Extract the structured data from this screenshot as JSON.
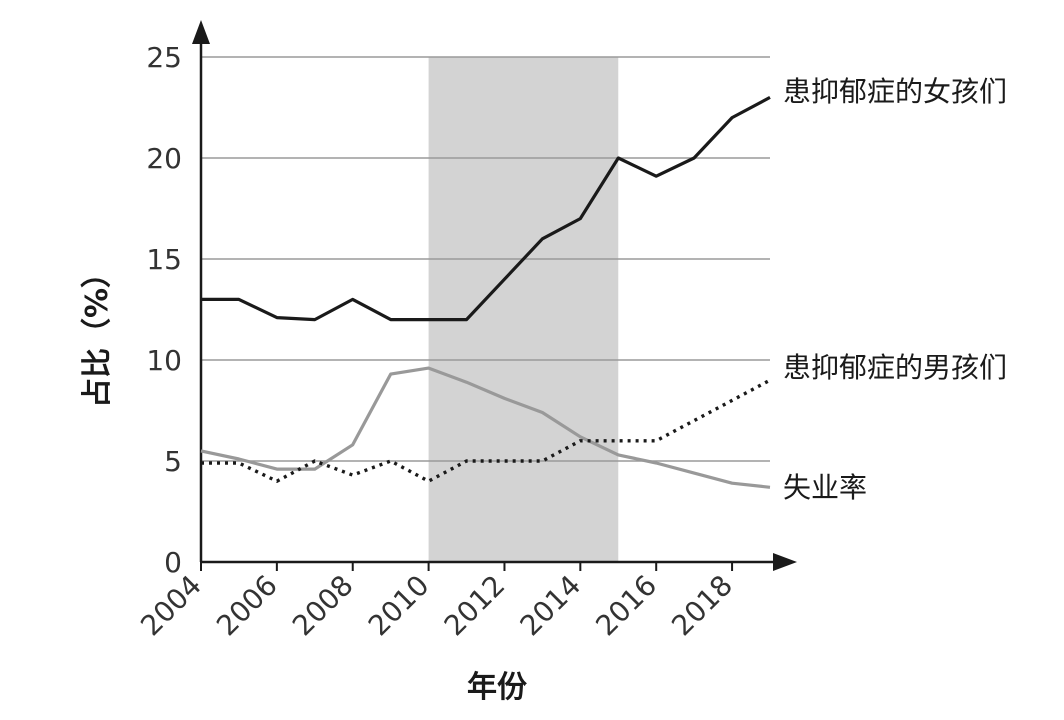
{
  "chart_data": {
    "type": "line",
    "title": "",
    "xlabel": "年份",
    "ylabel": "占比（%）",
    "xlim": [
      2004,
      2019
    ],
    "ylim": [
      0,
      25
    ],
    "x_ticks": [
      "2004",
      "2006",
      "2008",
      "2010",
      "2012",
      "2014",
      "2016",
      "2018"
    ],
    "y_ticks": [
      "0",
      "5",
      "10",
      "15",
      "20",
      "25"
    ],
    "grid": "horizontal",
    "shaded_period": [
      2010,
      2015
    ],
    "series": [
      {
        "name": "患抑郁症的女孩们",
        "style": "solid",
        "color": "#1a1a1a",
        "x": [
          2004,
          2005,
          2006,
          2007,
          2008,
          2009,
          2010,
          2011,
          2012,
          2013,
          2014,
          2015,
          2016,
          2017,
          2018,
          2019
        ],
        "y": [
          13,
          13,
          12.1,
          12,
          13,
          12,
          12,
          12,
          14,
          16,
          17,
          20,
          19.1,
          20,
          22,
          23
        ]
      },
      {
        "name": "患抑郁症的男孩们",
        "style": "dotted",
        "color": "#1a1a1a",
        "x": [
          2004,
          2005,
          2006,
          2007,
          2008,
          2009,
          2010,
          2011,
          2012,
          2013,
          2014,
          2015,
          2016,
          2017,
          2018,
          2019
        ],
        "y": [
          4.9,
          4.9,
          4,
          5,
          4.3,
          5,
          4,
          5,
          5,
          5,
          6,
          6,
          6,
          7,
          8,
          9
        ]
      },
      {
        "name": "失业率",
        "style": "solid",
        "color": "#999999",
        "x": [
          2004,
          2005,
          2006,
          2007,
          2008,
          2009,
          2010,
          2011,
          2012,
          2013,
          2014,
          2015,
          2016,
          2017,
          2018,
          2019
        ],
        "y": [
          5.5,
          5.1,
          4.6,
          4.6,
          5.8,
          9.3,
          9.6,
          8.9,
          8.1,
          7.4,
          6.2,
          5.3,
          4.9,
          4.4,
          3.9,
          3.7
        ]
      }
    ]
  }
}
